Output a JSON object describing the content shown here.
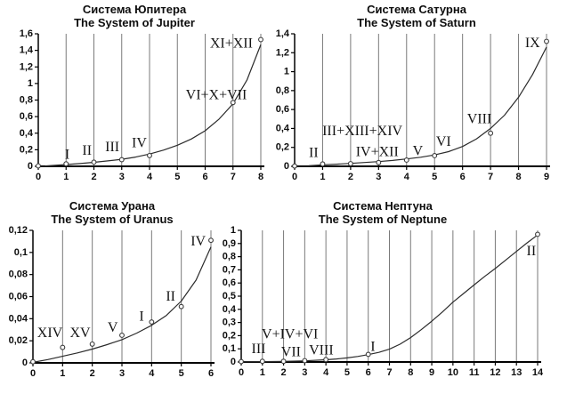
{
  "page": {
    "background": "#ffffff"
  },
  "colors": {
    "text": "#0d0d0d",
    "grid": "#7a7a7a",
    "axis": "#000000",
    "curve": "#2b2b2b",
    "marker_stroke": "#3c3c3c",
    "marker_fill": "#ffffff"
  },
  "chart_data": [
    {
      "id": "jupiter",
      "type": "scatter",
      "title_ru": "Система Юпитера",
      "title_en": "The System of Jupiter",
      "xlim": [
        0,
        8
      ],
      "ylim": [
        0,
        1.6
      ],
      "grid": "vertical-only",
      "legend": "none",
      "x_ticks": [
        "0",
        "1",
        "2",
        "3",
        "4",
        "5",
        "6",
        "7",
        "8"
      ],
      "y_ticks": [
        "0",
        "0,2",
        "0,4",
        "0,6",
        "0,8",
        "1",
        "1,2",
        "1,4",
        "1,6"
      ],
      "points": [
        [
          0,
          0.005
        ],
        [
          1,
          0.03
        ],
        [
          2,
          0.05
        ],
        [
          3,
          0.08
        ],
        [
          4,
          0.13
        ],
        [
          7,
          0.77
        ],
        [
          8,
          1.53
        ]
      ],
      "point_labels": [
        {
          "text": "I",
          "x": 1.04,
          "y": 0.14
        },
        {
          "text": "II",
          "x": 1.75,
          "y": 0.19
        },
        {
          "text": "III",
          "x": 2.66,
          "y": 0.23
        },
        {
          "text": "IV",
          "x": 3.63,
          "y": 0.28
        },
        {
          "text": "VI+X+VII",
          "x": 6.4,
          "y": 0.86
        },
        {
          "text": "XI+XII",
          "x": 6.94,
          "y": 1.48
        }
      ],
      "curve": [
        [
          0.25,
          0.004
        ],
        [
          1,
          0.022
        ],
        [
          1.5,
          0.033
        ],
        [
          2,
          0.048
        ],
        [
          2.5,
          0.065
        ],
        [
          3,
          0.085
        ],
        [
          3.5,
          0.112
        ],
        [
          4,
          0.148
        ],
        [
          4.5,
          0.195
        ],
        [
          5,
          0.255
        ],
        [
          5.5,
          0.33
        ],
        [
          6,
          0.43
        ],
        [
          6.5,
          0.57
        ],
        [
          7,
          0.755
        ],
        [
          7.5,
          1.04
        ],
        [
          8,
          1.47
        ]
      ]
    },
    {
      "id": "saturn",
      "type": "scatter",
      "title_ru": "Система Сатурна",
      "title_en": "The System of Saturn",
      "xlim": [
        0,
        9
      ],
      "ylim": [
        0,
        1.4
      ],
      "grid": "vertical-only",
      "legend": "none",
      "x_ticks": [
        "0",
        "1",
        "2",
        "3",
        "4",
        "5",
        "6",
        "7",
        "8",
        "9"
      ],
      "y_ticks": [
        "0",
        "0,2",
        "0,4",
        "0,6",
        "0,8",
        "1",
        "1,2",
        "1,4"
      ],
      "points": [
        [
          0,
          0.003
        ],
        [
          1,
          0.025
        ],
        [
          2,
          0.028
        ],
        [
          3,
          0.04
        ],
        [
          4,
          0.066
        ],
        [
          5,
          0.113
        ],
        [
          7,
          0.35
        ],
        [
          9,
          1.32
        ]
      ],
      "point_labels": [
        {
          "text": "II",
          "x": 0.68,
          "y": 0.14
        },
        {
          "text": "III+XIII+XIV",
          "x": 2.42,
          "y": 0.37
        },
        {
          "text": "IV+XII",
          "x": 2.95,
          "y": 0.15
        },
        {
          "text": "V",
          "x": 4.4,
          "y": 0.16
        },
        {
          "text": "VI",
          "x": 5.32,
          "y": 0.26
        },
        {
          "text": "VIII",
          "x": 6.6,
          "y": 0.5
        },
        {
          "text": "IX",
          "x": 8.5,
          "y": 1.3
        }
      ],
      "curve": [
        [
          0.5,
          0.007
        ],
        [
          1,
          0.016
        ],
        [
          1.5,
          0.023
        ],
        [
          2,
          0.031
        ],
        [
          2.5,
          0.04
        ],
        [
          3,
          0.05
        ],
        [
          3.5,
          0.062
        ],
        [
          4,
          0.078
        ],
        [
          4.5,
          0.096
        ],
        [
          5,
          0.12
        ],
        [
          5.5,
          0.155
        ],
        [
          6,
          0.21
        ],
        [
          6.5,
          0.29
        ],
        [
          7,
          0.4
        ],
        [
          7.5,
          0.54
        ],
        [
          8,
          0.73
        ],
        [
          8.5,
          0.97
        ],
        [
          9,
          1.26
        ]
      ]
    },
    {
      "id": "uranus",
      "type": "scatter",
      "title_ru": "Система Урана",
      "title_en": "The System of Uranus",
      "xlim": [
        0,
        6
      ],
      "ylim": [
        0,
        0.12
      ],
      "grid": "vertical-only",
      "legend": "none",
      "x_ticks": [
        "0",
        "1",
        "2",
        "3",
        "4",
        "5",
        "6"
      ],
      "y_ticks": [
        "0",
        "0,02",
        "0,04",
        "0,06",
        "0,08",
        "0,1",
        "0,12"
      ],
      "points": [
        [
          0,
          0.001
        ],
        [
          1,
          0.014
        ],
        [
          2,
          0.017
        ],
        [
          3,
          0.025
        ],
        [
          4,
          0.037
        ],
        [
          5,
          0.051
        ],
        [
          6,
          0.111
        ]
      ],
      "point_labels": [
        {
          "text": "XIV",
          "x": 0.57,
          "y": 0.027
        },
        {
          "text": "XV",
          "x": 1.59,
          "y": 0.027
        },
        {
          "text": "V",
          "x": 2.69,
          "y": 0.032
        },
        {
          "text": "I",
          "x": 3.66,
          "y": 0.042
        },
        {
          "text": "II",
          "x": 4.64,
          "y": 0.06
        },
        {
          "text": "IV",
          "x": 5.57,
          "y": 0.11
        }
      ],
      "curve": [
        [
          0,
          0.0005
        ],
        [
          0.5,
          0.003
        ],
        [
          1,
          0.006
        ],
        [
          1.5,
          0.009
        ],
        [
          2,
          0.0125
        ],
        [
          2.5,
          0.0165
        ],
        [
          3,
          0.021
        ],
        [
          3.5,
          0.027
        ],
        [
          4,
          0.034
        ],
        [
          4.5,
          0.043
        ],
        [
          5,
          0.056
        ],
        [
          5.5,
          0.075
        ],
        [
          6,
          0.105
        ]
      ]
    },
    {
      "id": "neptune",
      "type": "scatter",
      "title_ru": "Система Нептуна",
      "title_en": "The System of Neptune",
      "xlim": [
        0,
        14
      ],
      "ylim": [
        0,
        1
      ],
      "grid": "vertical-only",
      "legend": "none",
      "x_ticks": [
        "0",
        "1",
        "2",
        "3",
        "4",
        "5",
        "6",
        "7",
        "8",
        "9",
        "10",
        "11",
        "12",
        "13",
        "14"
      ],
      "y_ticks": [
        "0",
        "0,1",
        "0,2",
        "0,3",
        "0,4",
        "0,5",
        "0,6",
        "0,7",
        "0,8",
        "0,9",
        "1"
      ],
      "points": [
        [
          0,
          0.003
        ],
        [
          1,
          0.005
        ],
        [
          2,
          0.005
        ],
        [
          3,
          0.01
        ],
        [
          4,
          0.018
        ],
        [
          6,
          0.058
        ],
        [
          14,
          0.97
        ]
      ],
      "point_labels": [
        {
          "text": "III",
          "x": 0.82,
          "y": 0.098
        },
        {
          "text": "V+IV+VI",
          "x": 2.3,
          "y": 0.21
        },
        {
          "text": "VII",
          "x": 2.35,
          "y": 0.074
        },
        {
          "text": "VIII",
          "x": 3.78,
          "y": 0.088
        },
        {
          "text": "I",
          "x": 6.22,
          "y": 0.115
        },
        {
          "text": "II",
          "x": 13.7,
          "y": 0.84
        }
      ],
      "curve": [
        [
          0,
          0.002
        ],
        [
          1,
          0.003
        ],
        [
          2,
          0.005
        ],
        [
          3,
          0.009
        ],
        [
          4,
          0.017
        ],
        [
          4.5,
          0.023
        ],
        [
          5,
          0.031
        ],
        [
          5.5,
          0.042
        ],
        [
          6,
          0.056
        ],
        [
          6.5,
          0.073
        ],
        [
          7,
          0.097
        ],
        [
          7.5,
          0.135
        ],
        [
          8,
          0.185
        ],
        [
          8.5,
          0.245
        ],
        [
          9,
          0.31
        ],
        [
          9.5,
          0.38
        ],
        [
          10,
          0.455
        ],
        [
          10.5,
          0.52
        ],
        [
          11,
          0.585
        ],
        [
          11.5,
          0.65
        ],
        [
          12,
          0.71
        ],
        [
          12.5,
          0.775
        ],
        [
          13,
          0.84
        ],
        [
          13.5,
          0.905
        ],
        [
          14,
          0.965
        ]
      ]
    }
  ]
}
